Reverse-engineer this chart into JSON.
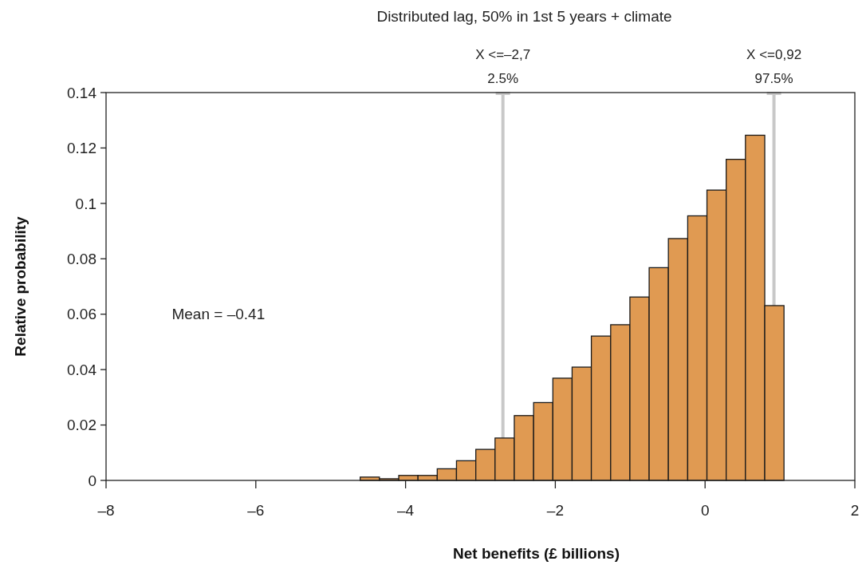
{
  "chart_data": {
    "type": "histogram",
    "title": "Distributed lag, 50% in 1st 5 years + climate",
    "xlabel": "Net benefits (£ billions)",
    "ylabel": "Relative probability",
    "bins": [
      -4.606,
      -4.349,
      -4.091,
      -3.834,
      -3.577,
      -3.32,
      -3.062,
      -2.805,
      -2.548,
      -2.29,
      -2.033,
      -1.776,
      -1.519,
      -1.261,
      -1.004,
      -0.747,
      -0.49,
      -0.232,
      0.025,
      0.282,
      0.539,
      0.797,
      1.054
    ],
    "values": [
      0.0012,
      0.0006,
      0.0018,
      0.0018,
      0.0042,
      0.0071,
      0.0112,
      0.0153,
      0.0234,
      0.0281,
      0.0369,
      0.0409,
      0.0521,
      0.0562,
      0.0662,
      0.0768,
      0.0873,
      0.0955,
      0.1048,
      0.1159,
      0.1246,
      0.0631
    ],
    "color": "#e09a52",
    "xlim": [
      -8,
      2
    ],
    "xticks": [
      {
        "value": -8,
        "label": "–8"
      },
      {
        "value": -6,
        "label": "–6"
      },
      {
        "value": -4,
        "label": "–4"
      },
      {
        "value": -2,
        "label": "–2"
      },
      0,
      2
    ],
    "ylim": [
      0,
      0.14
    ],
    "yticks": [
      0,
      0.02,
      0.04,
      0.06,
      0.08,
      0.1,
      0.12,
      0.14
    ],
    "ref_lines": [
      {
        "axis": "x",
        "value": -2.7,
        "label": "X <=–2,7\n2.5%",
        "color": "#c8c8c8"
      },
      {
        "axis": "x",
        "value": 0.92,
        "label": "X <=0,92\n97.5%",
        "color": "#c8c8c8"
      }
    ],
    "annotations": [
      "Mean = –0.41"
    ],
    "grid": false
  }
}
